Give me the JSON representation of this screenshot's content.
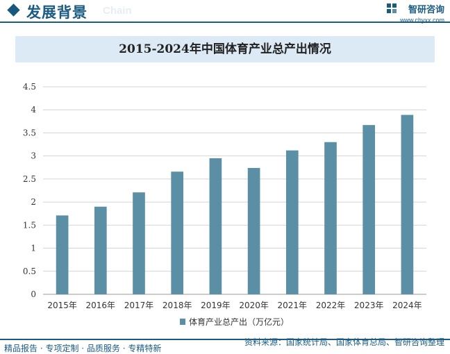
{
  "header": {
    "title": "发展背景",
    "subtitle": "Chain",
    "brand_name": "智研咨询",
    "brand_url": "www.chyxx.com"
  },
  "footer": {
    "services": "精品报告 · 专项定制 · 品质服务 · 专精特新",
    "source": "资料来源：国家统计局、国家体育总局、智研咨询整理"
  },
  "colors": {
    "accent": "#1b5b82",
    "bar": "#5a8fa5",
    "title_band": "#dbeaf4"
  },
  "chart_data": {
    "type": "bar",
    "title": "2015-2024年中国体育产业总产出情况",
    "categories": [
      "2015年",
      "2016年",
      "2017年",
      "2018年",
      "2019年",
      "2020年",
      "2021年",
      "2022年",
      "2023年",
      "2024年"
    ],
    "series": [
      {
        "name": "体育产业总产出（万亿元）",
        "values": [
          1.71,
          1.9,
          2.21,
          2.66,
          2.95,
          2.74,
          3.12,
          3.3,
          3.67,
          3.89
        ]
      }
    ],
    "yticks": [
      "0",
      "0.5",
      "1",
      "1.5",
      "2",
      "2.5",
      "3",
      "3.5",
      "4",
      "4.5"
    ],
    "ylim": [
      0,
      4.5
    ],
    "grid": true,
    "legend_position": "bottom"
  }
}
